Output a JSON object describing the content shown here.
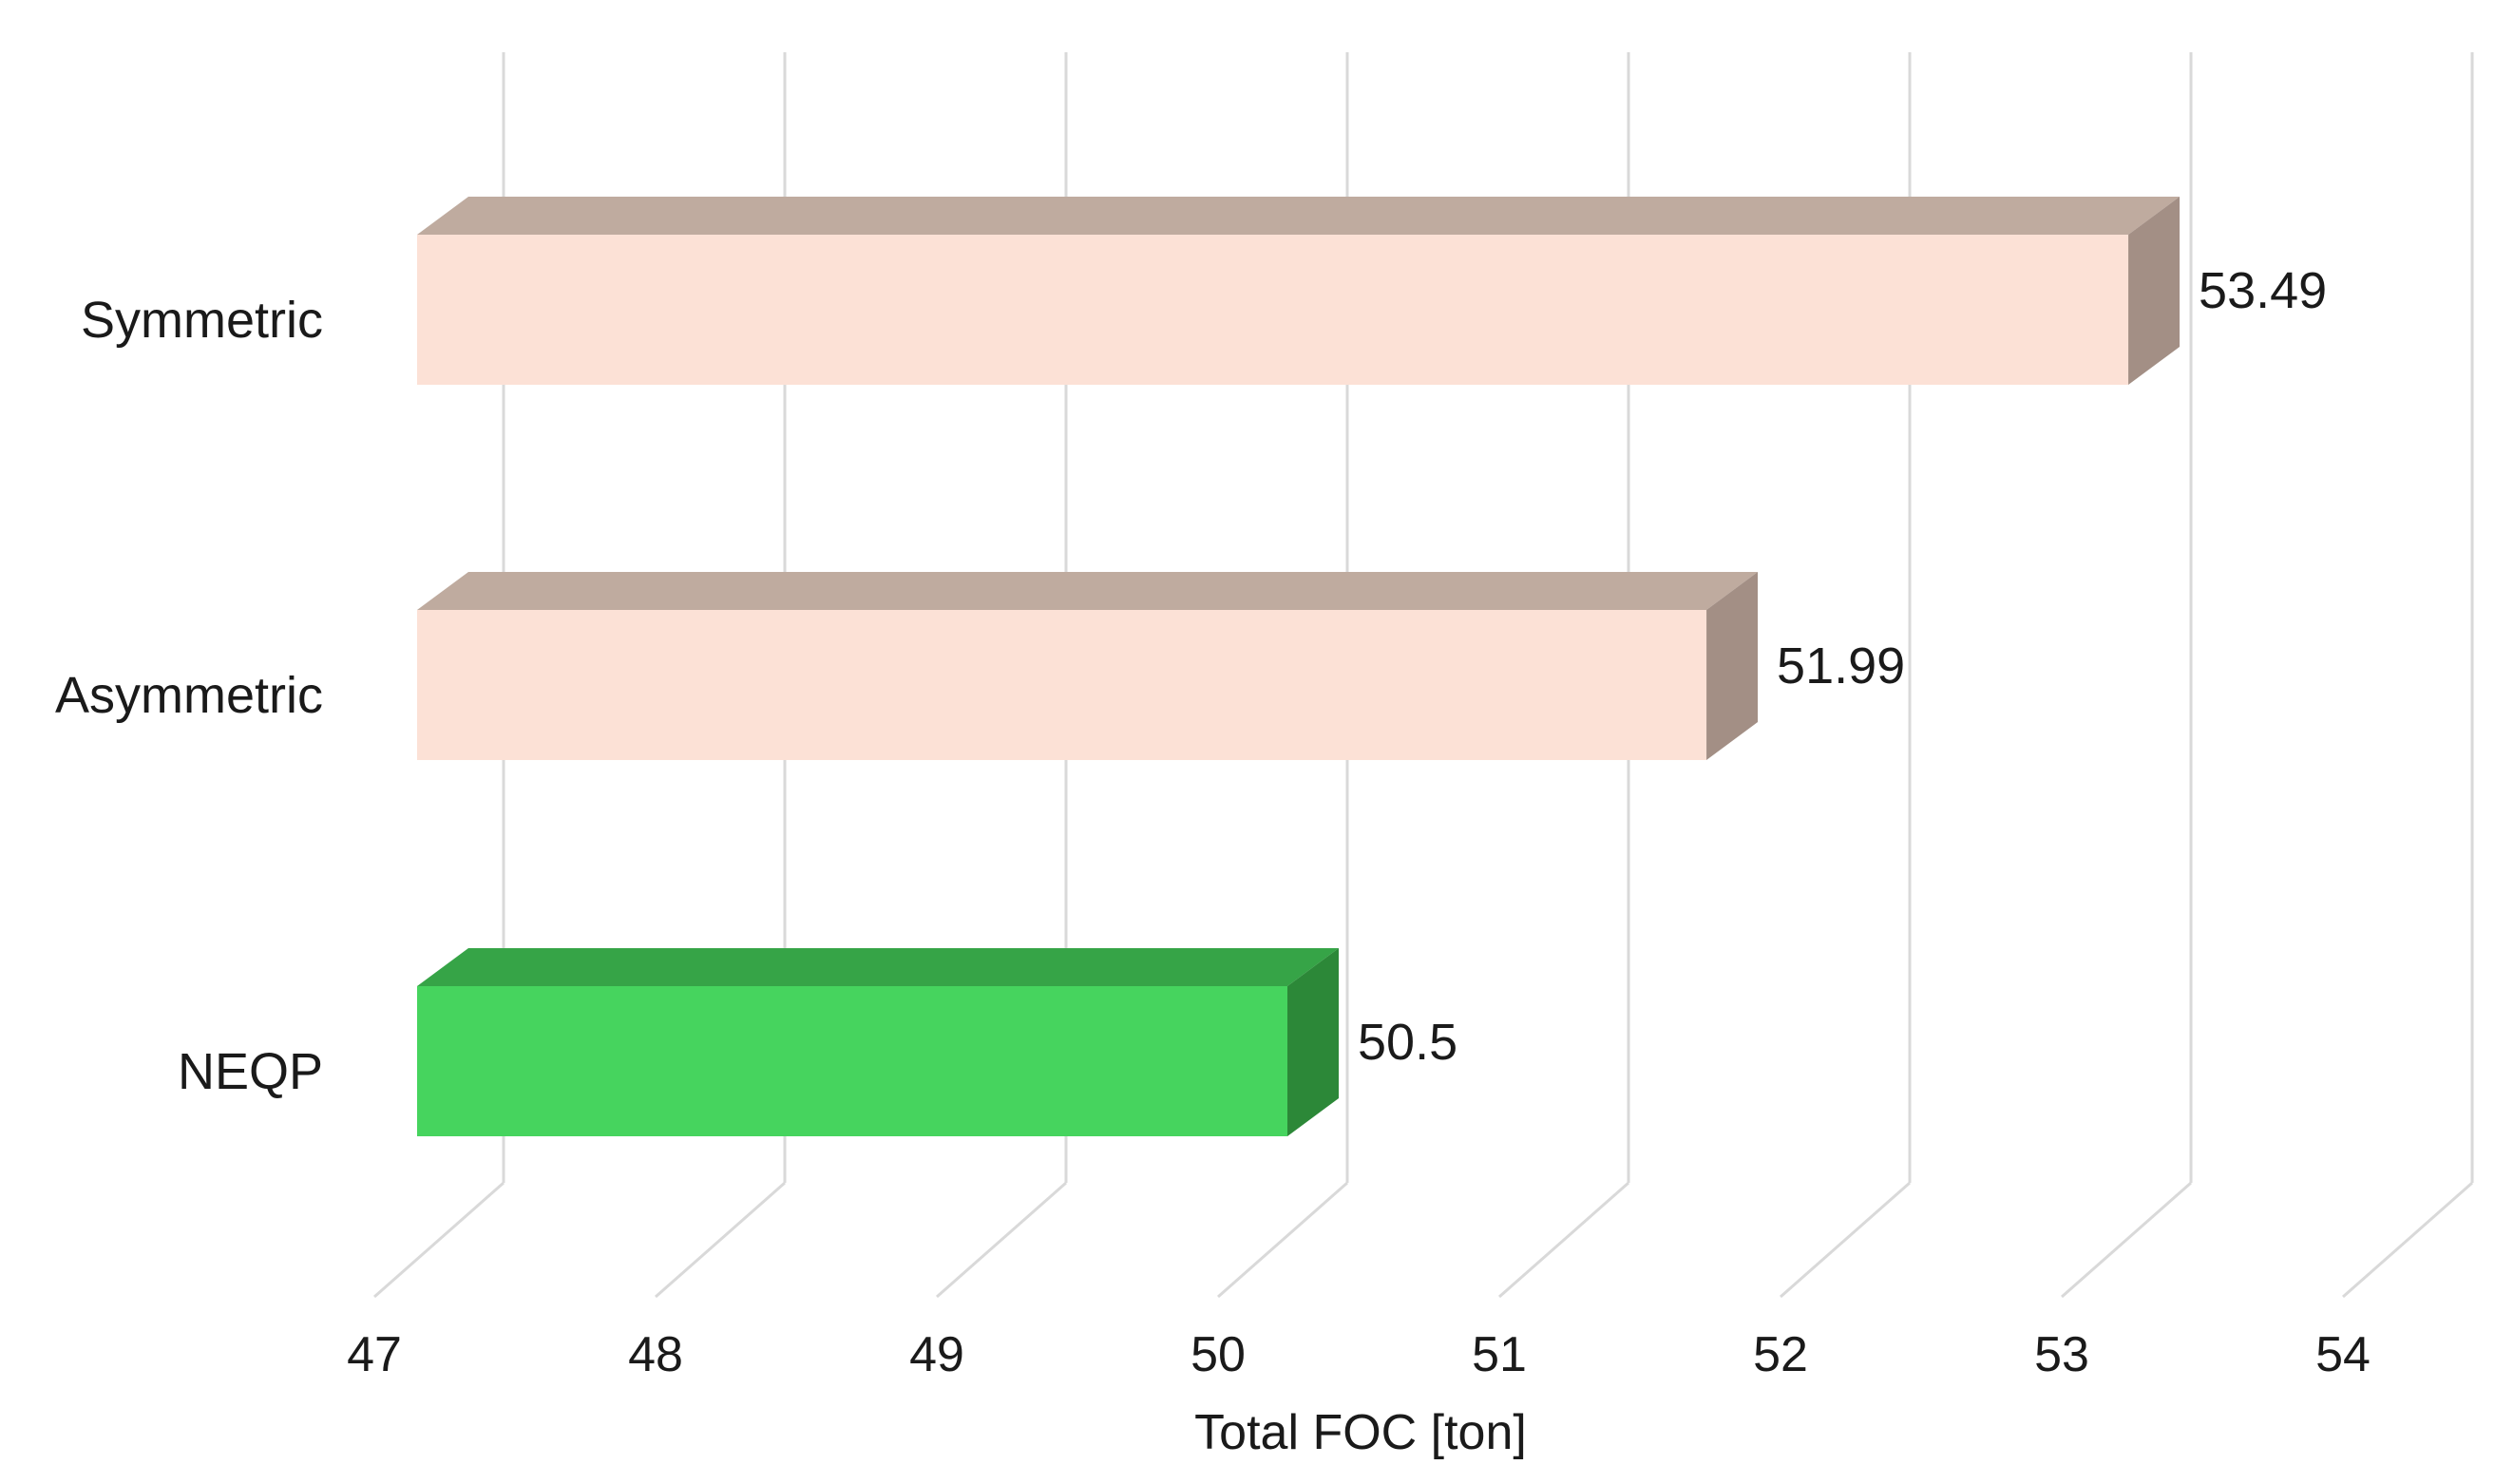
{
  "chart_data": {
    "type": "bar",
    "orientation": "horizontal",
    "style": "3d",
    "categories": [
      "Symmetric",
      "Asymmetric",
      "NEQP"
    ],
    "values": [
      53.49,
      51.99,
      50.5
    ],
    "value_labels": [
      "53.49",
      "51.99",
      "50.5"
    ],
    "bar_colors": [
      "#fce1d6",
      "#fce1d6",
      "#46d45e"
    ],
    "bar_top_colors": [
      "#bfab9f",
      "#bfab9f",
      "#36a447"
    ],
    "bar_side_colors": [
      "#a38f85",
      "#a38f85",
      "#2c8838"
    ],
    "xlabel": "Total FOC [ton]",
    "ylabel": "",
    "title": "",
    "xlim": [
      47,
      54
    ],
    "xticks": [
      "47",
      "48",
      "49",
      "50",
      "51",
      "52",
      "53",
      "54"
    ],
    "grid": true,
    "grid_color": "#d9d9d9",
    "legend": "none"
  }
}
